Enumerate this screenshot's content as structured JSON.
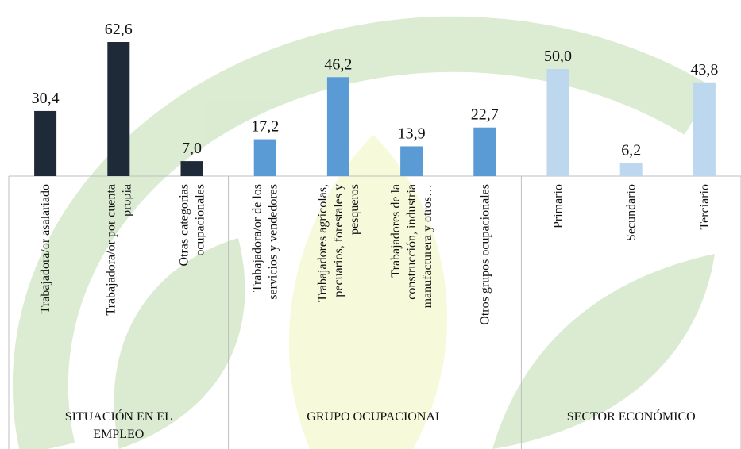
{
  "chart_data": {
    "type": "bar",
    "groups": [
      {
        "name": "SITUACIÓN EN EL EMPLEO",
        "color": "#1f2a38",
        "categories": [
          "Trabajadora/or asalariado",
          "Trabajadora/or por cuenta propia",
          "Otras categorias ocupacionales"
        ],
        "values": [
          30.4,
          62.6,
          7.0
        ],
        "value_labels": [
          "30,4",
          "62,6",
          "7,0"
        ]
      },
      {
        "name": "GRUPO OCUPACIONAL",
        "color": "#5b9bd5",
        "categories": [
          "Trabajadora/or de los servicios y vendedores",
          "Trabajadores agricolas, pecuarios, forestales y pesqueros",
          "Trabajadores de la construcción, industria manufacturera y otros…",
          "Otros grupos ocupacionales"
        ],
        "values": [
          17.2,
          46.2,
          13.9,
          22.7
        ],
        "value_labels": [
          "17,2",
          "46,2",
          "13,9",
          "22,7"
        ]
      },
      {
        "name": "SECTOR ECONÓMICO",
        "color": "#bdd7ee",
        "categories": [
          "Primario",
          "Secundario",
          "Terciario"
        ],
        "values": [
          50.0,
          6.2,
          43.8
        ],
        "value_labels": [
          "50,0",
          "6,2",
          "43,8"
        ]
      }
    ]
  }
}
